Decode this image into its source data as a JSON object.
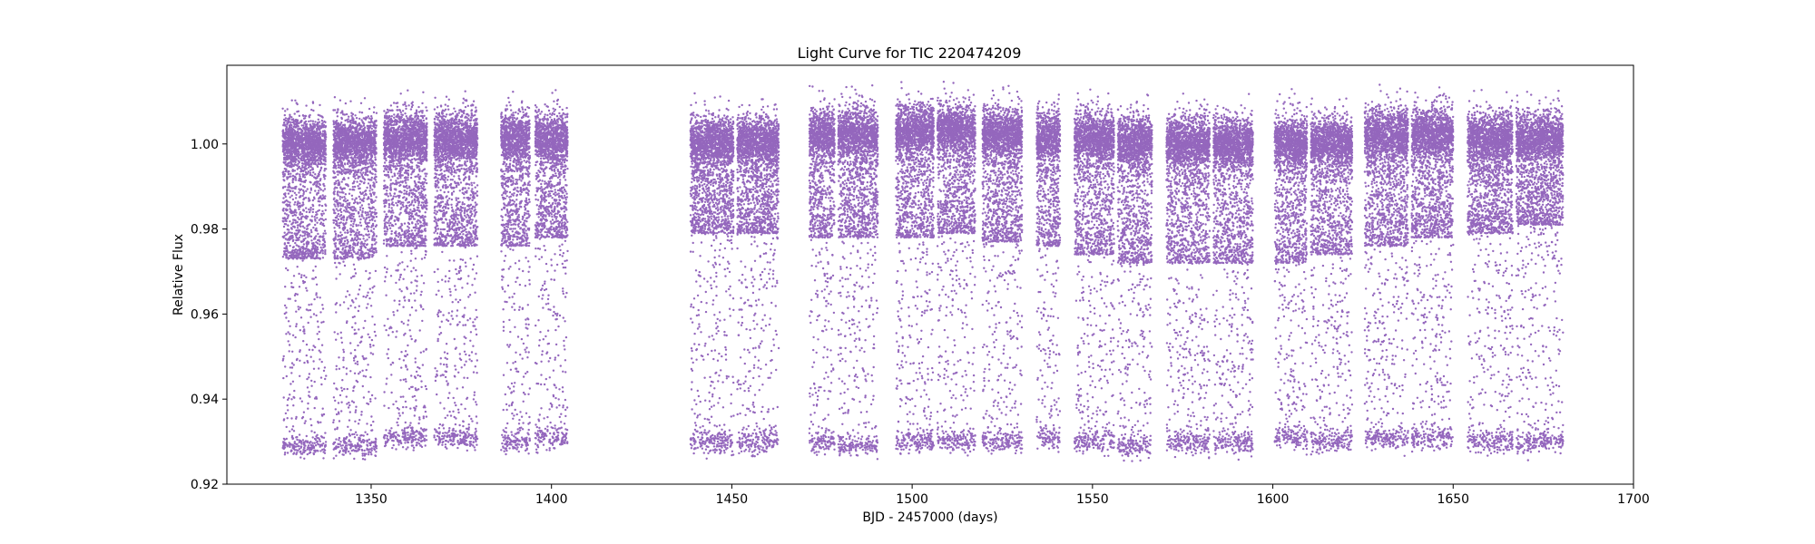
{
  "chart_data": {
    "type": "scatter",
    "title": "Light Curve for TIC 220474209",
    "xlabel": "BJD - 2457000 (days)",
    "ylabel": "Relative Flux",
    "xlim": [
      1310,
      1700
    ],
    "ylim": [
      0.92,
      1.0185
    ],
    "x_ticks": [
      1350,
      1400,
      1450,
      1500,
      1550,
      1600,
      1650,
      1700
    ],
    "y_ticks": [
      0.92,
      0.94,
      0.96,
      0.98,
      1.0
    ],
    "grid": false,
    "legend": "none",
    "marker_color": "#9467bd",
    "series": [
      {
        "segments": [
          {
            "start": 1325.5,
            "end": 1337.5,
            "baseline": 1.0,
            "dip_floor": 0.973,
            "minimum": 0.927
          },
          {
            "start": 1339.5,
            "end": 1351.5,
            "baseline": 1.0,
            "dip_floor": 0.973,
            "minimum": 0.927
          },
          {
            "start": 1353.5,
            "end": 1365.5,
            "baseline": 1.001,
            "dip_floor": 0.976,
            "minimum": 0.929
          },
          {
            "start": 1367.5,
            "end": 1379.5,
            "baseline": 1.001,
            "dip_floor": 0.976,
            "minimum": 0.929
          },
          {
            "start": 1386.0,
            "end": 1394.0,
            "baseline": 1.001,
            "dip_floor": 0.976,
            "minimum": 0.928
          },
          {
            "start": 1395.5,
            "end": 1404.5,
            "baseline": 1.001,
            "dip_floor": 0.978,
            "minimum": 0.929
          },
          {
            "start": 1438.5,
            "end": 1450.5,
            "baseline": 1.0,
            "dip_floor": 0.979,
            "minimum": 0.928
          },
          {
            "start": 1451.5,
            "end": 1463.0,
            "baseline": 1.0,
            "dip_floor": 0.979,
            "minimum": 0.928
          },
          {
            "start": 1471.5,
            "end": 1478.5,
            "baseline": 1.002,
            "dip_floor": 0.978,
            "minimum": 0.928
          },
          {
            "start": 1479.5,
            "end": 1490.5,
            "baseline": 1.002,
            "dip_floor": 0.978,
            "minimum": 0.927
          },
          {
            "start": 1495.5,
            "end": 1506.0,
            "baseline": 1.003,
            "dip_floor": 0.978,
            "minimum": 0.928
          },
          {
            "start": 1507.0,
            "end": 1517.5,
            "baseline": 1.003,
            "dip_floor": 0.979,
            "minimum": 0.928
          },
          {
            "start": 1519.5,
            "end": 1530.5,
            "baseline": 1.002,
            "dip_floor": 0.977,
            "minimum": 0.928
          },
          {
            "start": 1534.5,
            "end": 1541.0,
            "baseline": 1.001,
            "dip_floor": 0.976,
            "minimum": 0.929
          },
          {
            "start": 1545.0,
            "end": 1556.0,
            "baseline": 1.001,
            "dip_floor": 0.974,
            "minimum": 0.928
          },
          {
            "start": 1557.0,
            "end": 1566.5,
            "baseline": 1.0,
            "dip_floor": 0.972,
            "minimum": 0.927
          },
          {
            "start": 1570.5,
            "end": 1582.5,
            "baseline": 1.0,
            "dip_floor": 0.972,
            "minimum": 0.928
          },
          {
            "start": 1583.5,
            "end": 1594.5,
            "baseline": 1.0,
            "dip_floor": 0.972,
            "minimum": 0.928
          },
          {
            "start": 1600.5,
            "end": 1609.5,
            "baseline": 1.0,
            "dip_floor": 0.972,
            "minimum": 0.929
          },
          {
            "start": 1610.5,
            "end": 1622.0,
            "baseline": 1.0,
            "dip_floor": 0.974,
            "minimum": 0.928
          },
          {
            "start": 1625.5,
            "end": 1637.5,
            "baseline": 1.002,
            "dip_floor": 0.976,
            "minimum": 0.929
          },
          {
            "start": 1638.5,
            "end": 1650.0,
            "baseline": 1.002,
            "dip_floor": 0.978,
            "minimum": 0.929
          },
          {
            "start": 1654.0,
            "end": 1666.5,
            "baseline": 1.001,
            "dip_floor": 0.979,
            "minimum": 0.928
          },
          {
            "start": 1667.5,
            "end": 1680.5,
            "baseline": 1.001,
            "dip_floor": 0.981,
            "minimum": 0.928
          }
        ]
      }
    ]
  }
}
